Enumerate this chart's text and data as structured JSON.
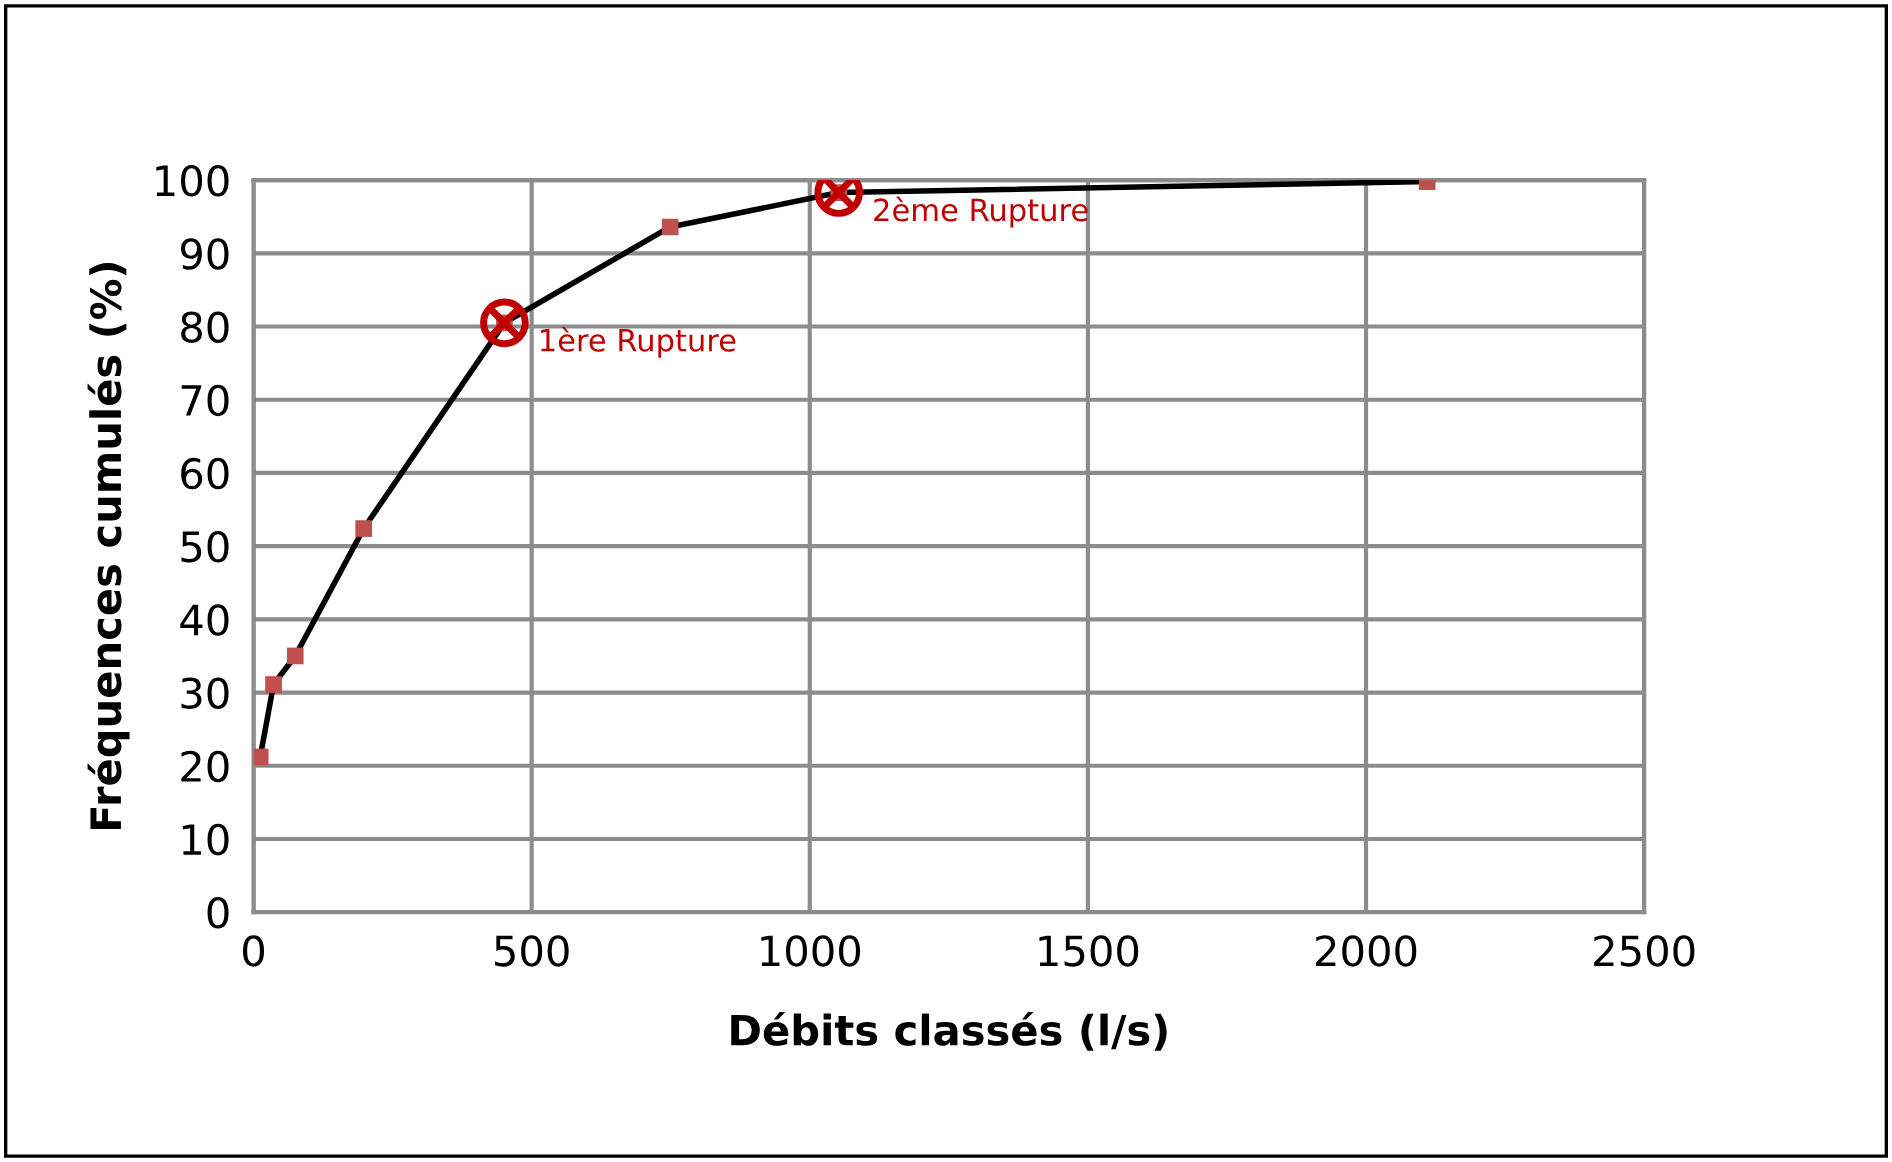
{
  "chart_data": {
    "type": "line",
    "xlabel": "Débits classés (l/s)",
    "ylabel": "Fréquences cumulés (%)",
    "series": [
      {
        "color": "#000000",
        "colors": [
          "#c0504d",
          "#c0504d",
          "#c0504d",
          "#c0504d",
          "#c0504d",
          "#c0504d",
          "#c0504d",
          "#c0504d"
        ],
        "x": [
          12,
          36,
          75,
          198,
          451,
          749,
          1052,
          2110
        ],
        "values": [
          21.2,
          31.1,
          35.0,
          52.4,
          80.5,
          93.6,
          98.3,
          99.8
        ]
      }
    ],
    "marker": "square",
    "line_style": "solid",
    "xlim": [
      0,
      2500
    ],
    "xticks": [
      0,
      500,
      1000,
      1500,
      2000,
      2500
    ],
    "ylim": [
      0,
      100
    ],
    "yticks": [
      0,
      10,
      20,
      30,
      40,
      50,
      60,
      70,
      80,
      90,
      100
    ],
    "grid": true,
    "legend": false,
    "annotations": [
      {
        "text": "1ère Rupture",
        "x": 451,
        "y": 80.5
      },
      {
        "text": "2ème Rupture",
        "x": 1052,
        "y": 98.3
      }
    ]
  }
}
